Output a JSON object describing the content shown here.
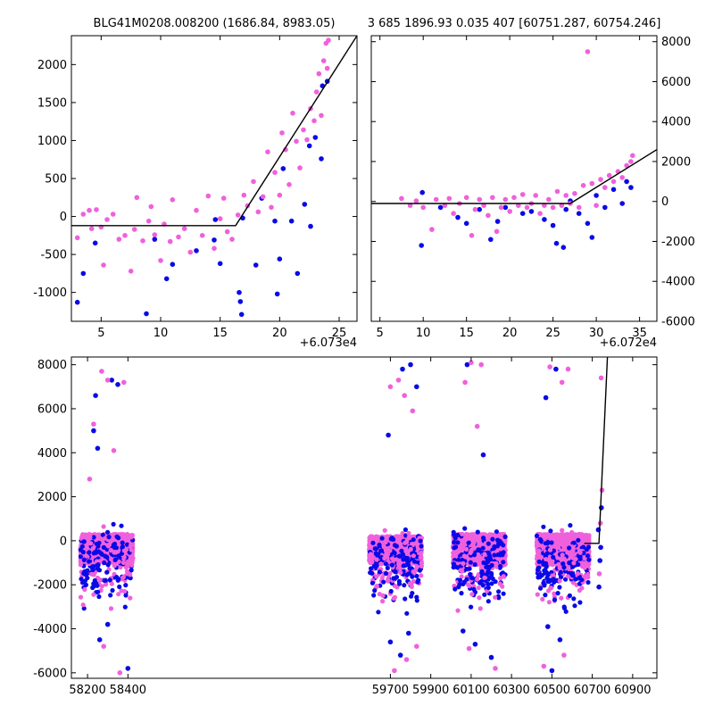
{
  "figure": {
    "title_left": "BLG41M0208.008200 (1686.84, 8983.05)",
    "title_right": "3 685 1896.93 0.035 407 [60751.287, 60754.246]"
  },
  "colors": {
    "series_1": "#0a0ae6",
    "series_2": "#f060dc",
    "model": "#000000"
  },
  "chart_data": [
    {
      "type": "scatter",
      "panel": "top-left",
      "x_offset_label": "+6.073e4",
      "xlim": [
        2.5,
        26.5
      ],
      "ylim": [
        -1380,
        2380
      ],
      "xticks": [
        5,
        10,
        15,
        20,
        25
      ],
      "yticks": [
        -1000,
        -500,
        0,
        500,
        1000,
        1500,
        2000
      ],
      "grid": false,
      "model_line": {
        "x": [
          2.5,
          16.3,
          26.5
        ],
        "y": [
          -120,
          -120,
          2380
        ]
      },
      "series": [
        {
          "values": [
            [
              3.0,
              -1130
            ],
            [
              3.5,
              -750
            ],
            [
              4.5,
              -350
            ],
            [
              8.8,
              -1280
            ],
            [
              9.5,
              -300
            ],
            [
              10.5,
              -820
            ],
            [
              11.0,
              -630
            ],
            [
              13.0,
              -450
            ],
            [
              14.5,
              -310
            ],
            [
              14.6,
              -40
            ],
            [
              15.0,
              -620
            ],
            [
              16.6,
              -1000
            ],
            [
              16.7,
              -1120
            ],
            [
              16.8,
              -1290
            ],
            [
              16.9,
              -20
            ],
            [
              18.0,
              -640
            ],
            [
              18.5,
              240
            ],
            [
              19.6,
              -60
            ],
            [
              19.8,
              -1020
            ],
            [
              20.0,
              -560
            ],
            [
              20.3,
              630
            ],
            [
              21.0,
              -60
            ],
            [
              21.5,
              -750
            ],
            [
              22.1,
              160
            ],
            [
              22.5,
              930
            ],
            [
              22.6,
              -130
            ],
            [
              23.0,
              1040
            ],
            [
              23.5,
              760
            ],
            [
              23.6,
              1720
            ],
            [
              24.0,
              1780
            ]
          ]
        },
        {
          "values": [
            [
              3.0,
              -280
            ],
            [
              3.5,
              30
            ],
            [
              4.0,
              80
            ],
            [
              4.2,
              -160
            ],
            [
              4.6,
              90
            ],
            [
              5.0,
              -140
            ],
            [
              5.2,
              -640
            ],
            [
              5.5,
              -40
            ],
            [
              6.0,
              30
            ],
            [
              6.5,
              -300
            ],
            [
              7.0,
              -250
            ],
            [
              7.5,
              -720
            ],
            [
              7.8,
              -170
            ],
            [
              8.0,
              250
            ],
            [
              8.5,
              -320
            ],
            [
              9.0,
              -60
            ],
            [
              9.2,
              130
            ],
            [
              9.5,
              -240
            ],
            [
              10.0,
              -580
            ],
            [
              10.3,
              -100
            ],
            [
              10.8,
              -330
            ],
            [
              11.0,
              220
            ],
            [
              11.5,
              -270
            ],
            [
              12.0,
              -160
            ],
            [
              12.5,
              -470
            ],
            [
              13.0,
              80
            ],
            [
              13.5,
              -250
            ],
            [
              14.0,
              270
            ],
            [
              14.5,
              -420
            ],
            [
              15.0,
              -30
            ],
            [
              15.3,
              240
            ],
            [
              15.6,
              -200
            ],
            [
              16.0,
              -300
            ],
            [
              16.5,
              20
            ],
            [
              17.0,
              280
            ],
            [
              17.3,
              140
            ],
            [
              17.8,
              460
            ],
            [
              18.2,
              60
            ],
            [
              18.6,
              260
            ],
            [
              19.0,
              850
            ],
            [
              19.3,
              120
            ],
            [
              19.6,
              580
            ],
            [
              20.0,
              280
            ],
            [
              20.2,
              1100
            ],
            [
              20.5,
              880
            ],
            [
              20.8,
              420
            ],
            [
              21.1,
              1360
            ],
            [
              21.4,
              990
            ],
            [
              21.7,
              640
            ],
            [
              22.0,
              1140
            ],
            [
              22.3,
              1010
            ],
            [
              22.6,
              1420
            ],
            [
              22.9,
              1260
            ],
            [
              23.1,
              1640
            ],
            [
              23.3,
              1880
            ],
            [
              23.5,
              1330
            ],
            [
              23.7,
              2050
            ],
            [
              23.9,
              2280
            ],
            [
              24.0,
              1950
            ],
            [
              24.1,
              2320
            ]
          ]
        }
      ]
    },
    {
      "type": "scatter",
      "panel": "top-right",
      "x_offset_label": "+6.072e4",
      "xlim": [
        4.0,
        37.0
      ],
      "ylim": [
        -6000,
        8300
      ],
      "xticks": [
        5,
        10,
        15,
        20,
        25,
        30,
        35
      ],
      "yticks": [
        -6000,
        -4000,
        -2000,
        0,
        2000,
        4000,
        6000,
        8000
      ],
      "grid": false,
      "model_line": {
        "x": [
          4.0,
          27.0,
          37.0
        ],
        "y": [
          -100,
          -100,
          2600
        ]
      },
      "series": [
        {
          "values": [
            [
              9.8,
              -2200
            ],
            [
              9.9,
              450
            ],
            [
              12.0,
              -300
            ],
            [
              14.0,
              -800
            ],
            [
              15.0,
              -1100
            ],
            [
              16.5,
              -400
            ],
            [
              17.8,
              -1900
            ],
            [
              18.6,
              -1000
            ],
            [
              19.5,
              -300
            ],
            [
              21.5,
              -600
            ],
            [
              22.5,
              -500
            ],
            [
              24.0,
              -900
            ],
            [
              25.0,
              -1200
            ],
            [
              25.4,
              -2100
            ],
            [
              26.2,
              -2300
            ],
            [
              26.5,
              -400
            ],
            [
              27.0,
              30
            ],
            [
              28.0,
              -600
            ],
            [
              29.0,
              -1100
            ],
            [
              29.5,
              -1800
            ],
            [
              30.0,
              300
            ],
            [
              31.0,
              -300
            ],
            [
              32.0,
              600
            ],
            [
              33.0,
              -100
            ],
            [
              33.5,
              1000
            ],
            [
              34.0,
              700
            ]
          ]
        },
        {
          "values": [
            [
              7.5,
              150
            ],
            [
              8.5,
              -200
            ],
            [
              9.2,
              30
            ],
            [
              10.0,
              -300
            ],
            [
              11.0,
              -1400
            ],
            [
              11.5,
              100
            ],
            [
              12.5,
              -200
            ],
            [
              13.0,
              150
            ],
            [
              13.5,
              -600
            ],
            [
              14.2,
              -100
            ],
            [
              15.0,
              200
            ],
            [
              15.6,
              -1700
            ],
            [
              16.0,
              -400
            ],
            [
              16.5,
              100
            ],
            [
              17.0,
              -200
            ],
            [
              17.5,
              -700
            ],
            [
              18.0,
              200
            ],
            [
              18.5,
              -1500
            ],
            [
              19.0,
              -300
            ],
            [
              19.5,
              100
            ],
            [
              20.0,
              -500
            ],
            [
              20.5,
              200
            ],
            [
              21.0,
              -200
            ],
            [
              21.5,
              350
            ],
            [
              22.0,
              -300
            ],
            [
              22.5,
              -100
            ],
            [
              23.0,
              300
            ],
            [
              23.5,
              -600
            ],
            [
              24.0,
              -200
            ],
            [
              24.5,
              100
            ],
            [
              25.0,
              -300
            ],
            [
              25.5,
              500
            ],
            [
              26.0,
              -200
            ],
            [
              26.5,
              300
            ],
            [
              27.0,
              -100
            ],
            [
              27.5,
              400
            ],
            [
              28.0,
              -300
            ],
            [
              28.5,
              800
            ],
            [
              29.0,
              7500
            ],
            [
              29.5,
              900
            ],
            [
              30.0,
              -200
            ],
            [
              30.5,
              1100
            ],
            [
              31.0,
              700
            ],
            [
              31.5,
              1300
            ],
            [
              32.0,
              1000
            ],
            [
              32.5,
              1500
            ],
            [
              33.0,
              1200
            ],
            [
              33.5,
              1800
            ],
            [
              34.0,
              2000
            ],
            [
              34.2,
              2300
            ]
          ]
        }
      ]
    },
    {
      "type": "scatter",
      "panel": "bottom",
      "xlim": [
        58120,
        61020
      ],
      "ylim": [
        -6250,
        8350
      ],
      "xticks": [
        58200,
        58400,
        59700,
        59900,
        60100,
        60300,
        60500,
        60700,
        60900
      ],
      "yticks": [
        -6000,
        -4000,
        -2000,
        0,
        2000,
        4000,
        6000,
        8000
      ],
      "grid": false,
      "model_line": {
        "x": [
          60660,
          60733,
          60775
        ],
        "y": [
          -120,
          -120,
          8350
        ]
      },
      "seasons": [
        {
          "x_from": 58165,
          "x_to": 58425,
          "core_y": [
            -1000,
            300
          ],
          "spread": 8
        },
        {
          "x_from": 59595,
          "x_to": 59855,
          "core_y": [
            -1000,
            200
          ],
          "spread": 8
        },
        {
          "x_from": 60010,
          "x_to": 60270,
          "core_y": [
            -1100,
            300
          ],
          "spread": 8
        },
        {
          "x_from": 60425,
          "x_to": 60685,
          "core_y": [
            -1100,
            300
          ],
          "spread": 8
        }
      ],
      "series": [
        {
          "values": [
            [
              58240,
              6600
            ],
            [
              58230,
              5000
            ],
            [
              58250,
              4200
            ],
            [
              58320,
              7300
            ],
            [
              58350,
              7100
            ],
            [
              58400,
              -5800
            ],
            [
              58260,
              -4500
            ],
            [
              58300,
              -3800
            ],
            [
              59690,
              4800
            ],
            [
              59760,
              7800
            ],
            [
              59800,
              8000
            ],
            [
              59830,
              7000
            ],
            [
              59750,
              -5200
            ],
            [
              59700,
              -4600
            ],
            [
              59790,
              -4200
            ],
            [
              60080,
              8000
            ],
            [
              60160,
              3900
            ],
            [
              60200,
              -5300
            ],
            [
              60120,
              -4700
            ],
            [
              60060,
              -4100
            ],
            [
              60470,
              6500
            ],
            [
              60520,
              7800
            ],
            [
              60500,
              -5900
            ],
            [
              60540,
              -4500
            ],
            [
              60480,
              -3900
            ],
            [
              60733,
              -2100
            ],
            [
              60738,
              -900
            ],
            [
              60742,
              -300
            ],
            [
              60730,
              500
            ],
            [
              60745,
              1500
            ]
          ]
        },
        {
          "values": [
            [
              58230,
              5300
            ],
            [
              58270,
              7700
            ],
            [
              58300,
              7300
            ],
            [
              58380,
              7200
            ],
            [
              58210,
              2800
            ],
            [
              58330,
              4100
            ],
            [
              58360,
              -6000
            ],
            [
              58280,
              -4800
            ],
            [
              59700,
              7000
            ],
            [
              59740,
              7300
            ],
            [
              59770,
              6600
            ],
            [
              59810,
              5900
            ],
            [
              59720,
              -5900
            ],
            [
              59780,
              -5400
            ],
            [
              59830,
              -4800
            ],
            [
              60070,
              7200
            ],
            [
              60100,
              8100
            ],
            [
              60150,
              8000
            ],
            [
              60130,
              5200
            ],
            [
              60220,
              -5800
            ],
            [
              60090,
              -4900
            ],
            [
              60490,
              7900
            ],
            [
              60550,
              7200
            ],
            [
              60580,
              7800
            ],
            [
              60460,
              -5700
            ],
            [
              60560,
              -5200
            ],
            [
              60735,
              -1500
            ],
            [
              60740,
              800
            ],
            [
              60748,
              2300
            ],
            [
              60744,
              7400
            ]
          ]
        }
      ]
    }
  ]
}
